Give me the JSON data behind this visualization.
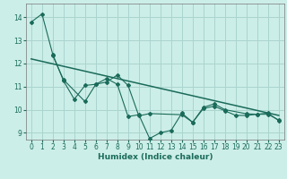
{
  "title": "",
  "xlabel": "Humidex (Indice chaleur)",
  "ylabel": "",
  "xlim": [
    -0.5,
    23.5
  ],
  "ylim": [
    8.7,
    14.6
  ],
  "yticks": [
    9,
    10,
    11,
    12,
    13,
    14
  ],
  "xticks": [
    0,
    1,
    2,
    3,
    4,
    5,
    6,
    7,
    8,
    9,
    10,
    11,
    12,
    13,
    14,
    15,
    16,
    17,
    18,
    19,
    20,
    21,
    22,
    23
  ],
  "bg_color": "#cceee8",
  "grid_color": "#aad4ce",
  "line_color": "#1a6b5a",
  "line1_x": [
    0,
    1,
    2,
    3,
    4,
    5,
    6,
    7,
    8,
    9,
    10,
    11,
    12,
    13,
    14,
    15,
    16,
    17,
    18,
    19,
    20,
    21,
    22,
    23
  ],
  "line1_y": [
    13.8,
    14.15,
    12.4,
    11.25,
    10.45,
    11.05,
    11.1,
    11.35,
    11.1,
    9.7,
    9.78,
    8.75,
    9.0,
    9.1,
    9.85,
    9.45,
    10.05,
    10.15,
    9.95,
    9.75,
    9.75,
    9.8,
    9.8,
    9.55
  ],
  "line2_x": [
    2,
    3,
    5,
    6,
    7,
    8,
    9,
    10,
    11,
    14,
    15,
    16,
    17,
    18,
    20,
    21,
    22,
    23
  ],
  "line2_y": [
    12.35,
    11.3,
    10.35,
    11.1,
    11.2,
    11.5,
    11.05,
    9.73,
    9.83,
    9.78,
    9.45,
    10.1,
    10.25,
    10.0,
    9.82,
    9.8,
    9.85,
    9.52
  ],
  "line3_x": [
    0,
    23
  ],
  "line3_y": [
    12.2,
    9.75
  ],
  "tick_fontsize": 5.5,
  "xlabel_fontsize": 6.5
}
